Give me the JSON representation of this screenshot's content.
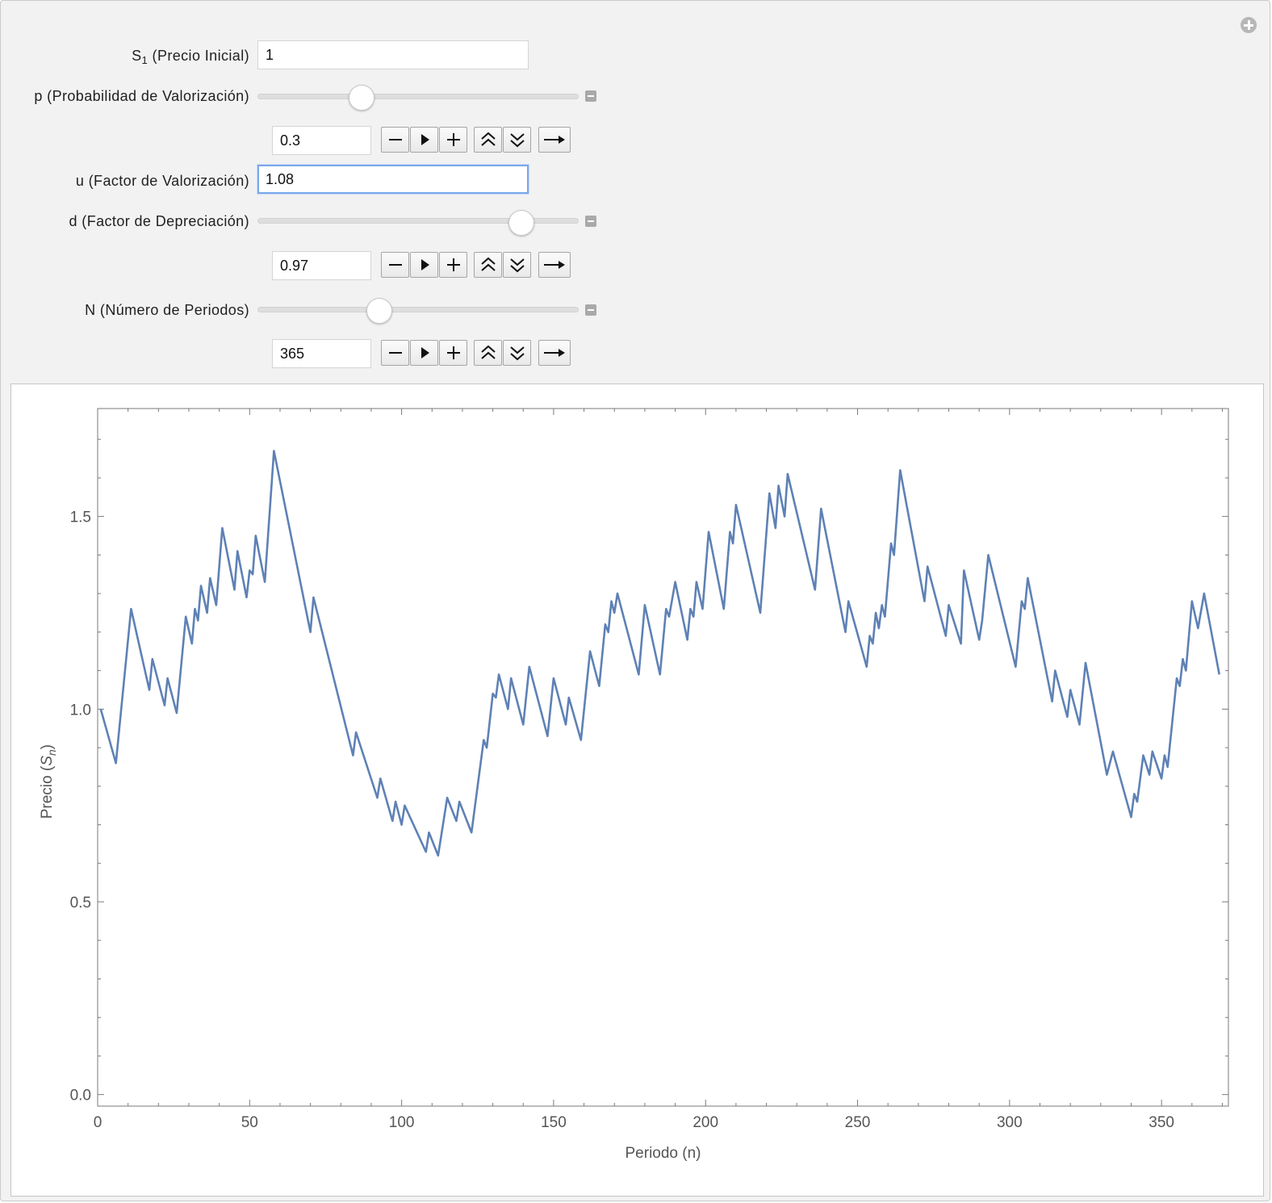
{
  "controls": {
    "s1": {
      "label_main": "S",
      "label_sub": "1",
      "label_rest": " (Precio Inicial)",
      "value": "1"
    },
    "p": {
      "label": "p (Probabilidad de Valorización)",
      "value": "0.3",
      "slider_fraction": 0.31
    },
    "u": {
      "label": "u (Factor de Valorización)",
      "value": "1.08"
    },
    "d": {
      "label": "d (Factor de Depreciación)",
      "value": "0.97",
      "slider_fraction": 0.85
    },
    "n": {
      "label": "N (Número de Periodos)",
      "value": "365",
      "slider_fraction": 0.37
    }
  },
  "icons": {
    "panel_corner": "plus-circle-icon",
    "collapse": "minus-box-icon",
    "animator_buttons": [
      "minus-icon",
      "play-icon",
      "plus-icon",
      "faster-icon",
      "slower-icon",
      "direction-arrow-icon"
    ]
  },
  "colors": {
    "line": "#5e81b5",
    "panel_bg": "#f2f2f2",
    "focus": "#7aa7ea"
  },
  "chart_data": {
    "type": "line",
    "xlabel": "Periodo (n)",
    "ylabel_main": "Precio (",
    "ylabel_var": "S",
    "ylabel_sub": "n",
    "ylabel_end": ")",
    "xlim": [
      0,
      372
    ],
    "ylim": [
      -0.03,
      1.78
    ],
    "x_ticks": [
      "0",
      "50",
      "100",
      "150",
      "200",
      "250",
      "300",
      "350"
    ],
    "x_tick_values": [
      0,
      50,
      100,
      150,
      200,
      250,
      300,
      350
    ],
    "y_ticks": [
      "0.0",
      "0.5",
      "1.0",
      "1.5"
    ],
    "y_tick_values": [
      0.0,
      0.5,
      1.0,
      1.5
    ],
    "series": [
      {
        "points": [
          [
            1,
            1.0
          ],
          [
            6,
            0.86
          ],
          [
            11,
            1.26
          ],
          [
            17,
            1.05
          ],
          [
            18,
            1.13
          ],
          [
            22,
            1.01
          ],
          [
            23,
            1.08
          ],
          [
            26,
            0.99
          ],
          [
            29,
            1.24
          ],
          [
            31,
            1.17
          ],
          [
            32,
            1.26
          ],
          [
            33,
            1.23
          ],
          [
            34,
            1.32
          ],
          [
            36,
            1.25
          ],
          [
            37,
            1.34
          ],
          [
            39,
            1.27
          ],
          [
            41,
            1.47
          ],
          [
            45,
            1.31
          ],
          [
            46,
            1.41
          ],
          [
            49,
            1.29
          ],
          [
            50,
            1.36
          ],
          [
            51,
            1.35
          ],
          [
            52,
            1.45
          ],
          [
            55,
            1.33
          ],
          [
            58,
            1.67
          ],
          [
            70,
            1.2
          ],
          [
            71,
            1.29
          ],
          [
            84,
            0.88
          ],
          [
            85,
            0.94
          ],
          [
            92,
            0.77
          ],
          [
            93,
            0.82
          ],
          [
            97,
            0.71
          ],
          [
            98,
            0.76
          ],
          [
            100,
            0.7
          ],
          [
            101,
            0.75
          ],
          [
            108,
            0.63
          ],
          [
            109,
            0.68
          ],
          [
            112,
            0.62
          ],
          [
            115,
            0.77
          ],
          [
            118,
            0.71
          ],
          [
            119,
            0.76
          ],
          [
            123,
            0.68
          ],
          [
            127,
            0.92
          ],
          [
            128,
            0.9
          ],
          [
            130,
            1.04
          ],
          [
            131,
            1.03
          ],
          [
            132,
            1.09
          ],
          [
            135,
            1.0
          ],
          [
            136,
            1.08
          ],
          [
            140,
            0.96
          ],
          [
            142,
            1.11
          ],
          [
            148,
            0.93
          ],
          [
            150,
            1.08
          ],
          [
            154,
            0.96
          ],
          [
            155,
            1.03
          ],
          [
            159,
            0.92
          ],
          [
            162,
            1.15
          ],
          [
            165,
            1.06
          ],
          [
            167,
            1.22
          ],
          [
            168,
            1.2
          ],
          [
            169,
            1.28
          ],
          [
            170,
            1.25
          ],
          [
            171,
            1.3
          ],
          [
            178,
            1.09
          ],
          [
            180,
            1.27
          ],
          [
            185,
            1.09
          ],
          [
            187,
            1.26
          ],
          [
            188,
            1.24
          ],
          [
            190,
            1.33
          ],
          [
            194,
            1.18
          ],
          [
            195,
            1.26
          ],
          [
            196,
            1.24
          ],
          [
            197,
            1.33
          ],
          [
            199,
            1.26
          ],
          [
            201,
            1.46
          ],
          [
            206,
            1.26
          ],
          [
            208,
            1.46
          ],
          [
            209,
            1.43
          ],
          [
            210,
            1.53
          ],
          [
            218,
            1.25
          ],
          [
            221,
            1.56
          ],
          [
            223,
            1.47
          ],
          [
            224,
            1.58
          ],
          [
            226,
            1.5
          ],
          [
            227,
            1.61
          ],
          [
            236,
            1.31
          ],
          [
            238,
            1.52
          ],
          [
            246,
            1.2
          ],
          [
            247,
            1.28
          ],
          [
            253,
            1.11
          ],
          [
            254,
            1.19
          ],
          [
            255,
            1.17
          ],
          [
            256,
            1.25
          ],
          [
            257,
            1.21
          ],
          [
            258,
            1.27
          ],
          [
            259,
            1.24
          ],
          [
            261,
            1.43
          ],
          [
            262,
            1.4
          ],
          [
            264,
            1.62
          ],
          [
            272,
            1.28
          ],
          [
            273,
            1.37
          ],
          [
            279,
            1.19
          ],
          [
            280,
            1.27
          ],
          [
            284,
            1.17
          ],
          [
            285,
            1.36
          ],
          [
            290,
            1.18
          ],
          [
            291,
            1.23
          ],
          [
            293,
            1.4
          ],
          [
            302,
            1.11
          ],
          [
            304,
            1.28
          ],
          [
            305,
            1.26
          ],
          [
            306,
            1.34
          ],
          [
            314,
            1.02
          ],
          [
            315,
            1.1
          ],
          [
            319,
            0.98
          ],
          [
            320,
            1.05
          ],
          [
            323,
            0.96
          ],
          [
            325,
            1.12
          ],
          [
            332,
            0.83
          ],
          [
            334,
            0.89
          ],
          [
            340,
            0.72
          ],
          [
            341,
            0.78
          ],
          [
            342,
            0.76
          ],
          [
            344,
            0.88
          ],
          [
            346,
            0.83
          ],
          [
            347,
            0.89
          ],
          [
            350,
            0.82
          ],
          [
            351,
            0.88
          ],
          [
            352,
            0.85
          ],
          [
            355,
            1.08
          ],
          [
            356,
            1.06
          ],
          [
            357,
            1.13
          ],
          [
            358,
            1.1
          ],
          [
            360,
            1.28
          ],
          [
            362,
            1.21
          ],
          [
            364,
            1.3
          ],
          [
            369,
            1.09
          ]
        ]
      }
    ]
  }
}
